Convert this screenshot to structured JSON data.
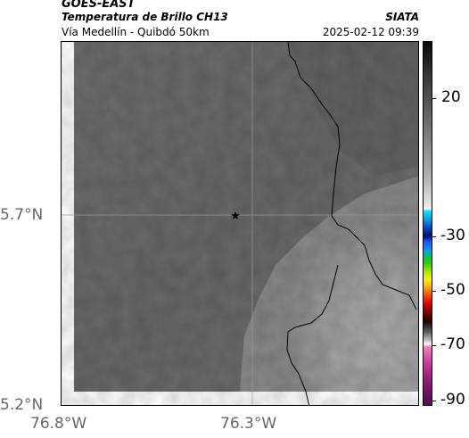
{
  "header": {
    "satellite": "GOES-EAST",
    "product": "Temperatura de Brillo CH13",
    "agency": "SIATA",
    "route": "Vía Medellín - Quibdó 50km",
    "timestamp": "2025-02-12 09:39"
  },
  "map": {
    "lat_ticks": [
      "5.7°N",
      "5.2°N"
    ],
    "lon_ticks": [
      "76.8°W",
      "76.3°W"
    ],
    "lat_range": [
      5.2,
      5.93
    ],
    "lon_range": [
      -76.8,
      -76.08
    ],
    "marker_icon": "star-icon"
  },
  "colorbar": {
    "labels": [
      "20",
      "-30",
      "-50",
      "-70",
      "-90"
    ]
  },
  "colors": {
    "land_dark": "#6b6b6b",
    "land_light": "#a8a8a8",
    "border": "#000000"
  }
}
